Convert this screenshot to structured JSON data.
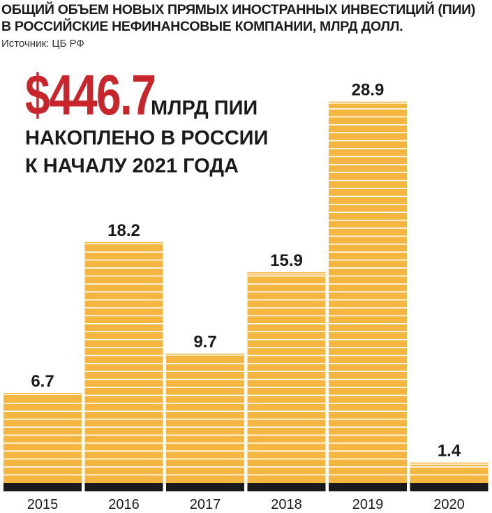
{
  "header": {
    "title_line1": "ОБЩИЙ ОБЪЕМ НОВЫХ ПРЯМЫХ ИНОСТРАННЫХ ИНВЕСТИЦИЙ (ПИИ)",
    "title_line2": "В РОССИЙСКИЕ НЕФИНАНСОВЫЕ КОМПАНИИ, МЛРД ДОЛЛ.",
    "source": "Источник: ЦБ РФ"
  },
  "callout": {
    "value": "$446.7",
    "unit": "МЛРД ПИИ",
    "line2": "НАКОПЛЕНО В РОССИИ",
    "line3": "К НАЧАЛУ 2021 ГОДА"
  },
  "colors": {
    "bar": "#f5b641",
    "stripe": "#ffffff",
    "baseline": "#1a1a1a",
    "accent": "#c8262c"
  },
  "chart_data": {
    "type": "bar",
    "title": "ОБЩИЙ ОБЪЕМ НОВЫХ ПРЯМЫХ ИНОСТРАННЫХ ИНВЕСТИЦИЙ (ПИИ) В РОССИЙСКИЕ НЕФИНАНСОВЫЕ КОМПАНИИ, МЛРД ДОЛЛ.",
    "categories": [
      "2015",
      "2016",
      "2017",
      "2018",
      "2019",
      "2020"
    ],
    "values": [
      6.7,
      18.2,
      9.7,
      15.9,
      28.9,
      1.4
    ],
    "value_labels": [
      "6.7",
      "18.2",
      "9.7",
      "15.9",
      "28.9",
      "1.4"
    ],
    "xlabel": "",
    "ylabel": "",
    "grid": false,
    "legend": "none"
  }
}
